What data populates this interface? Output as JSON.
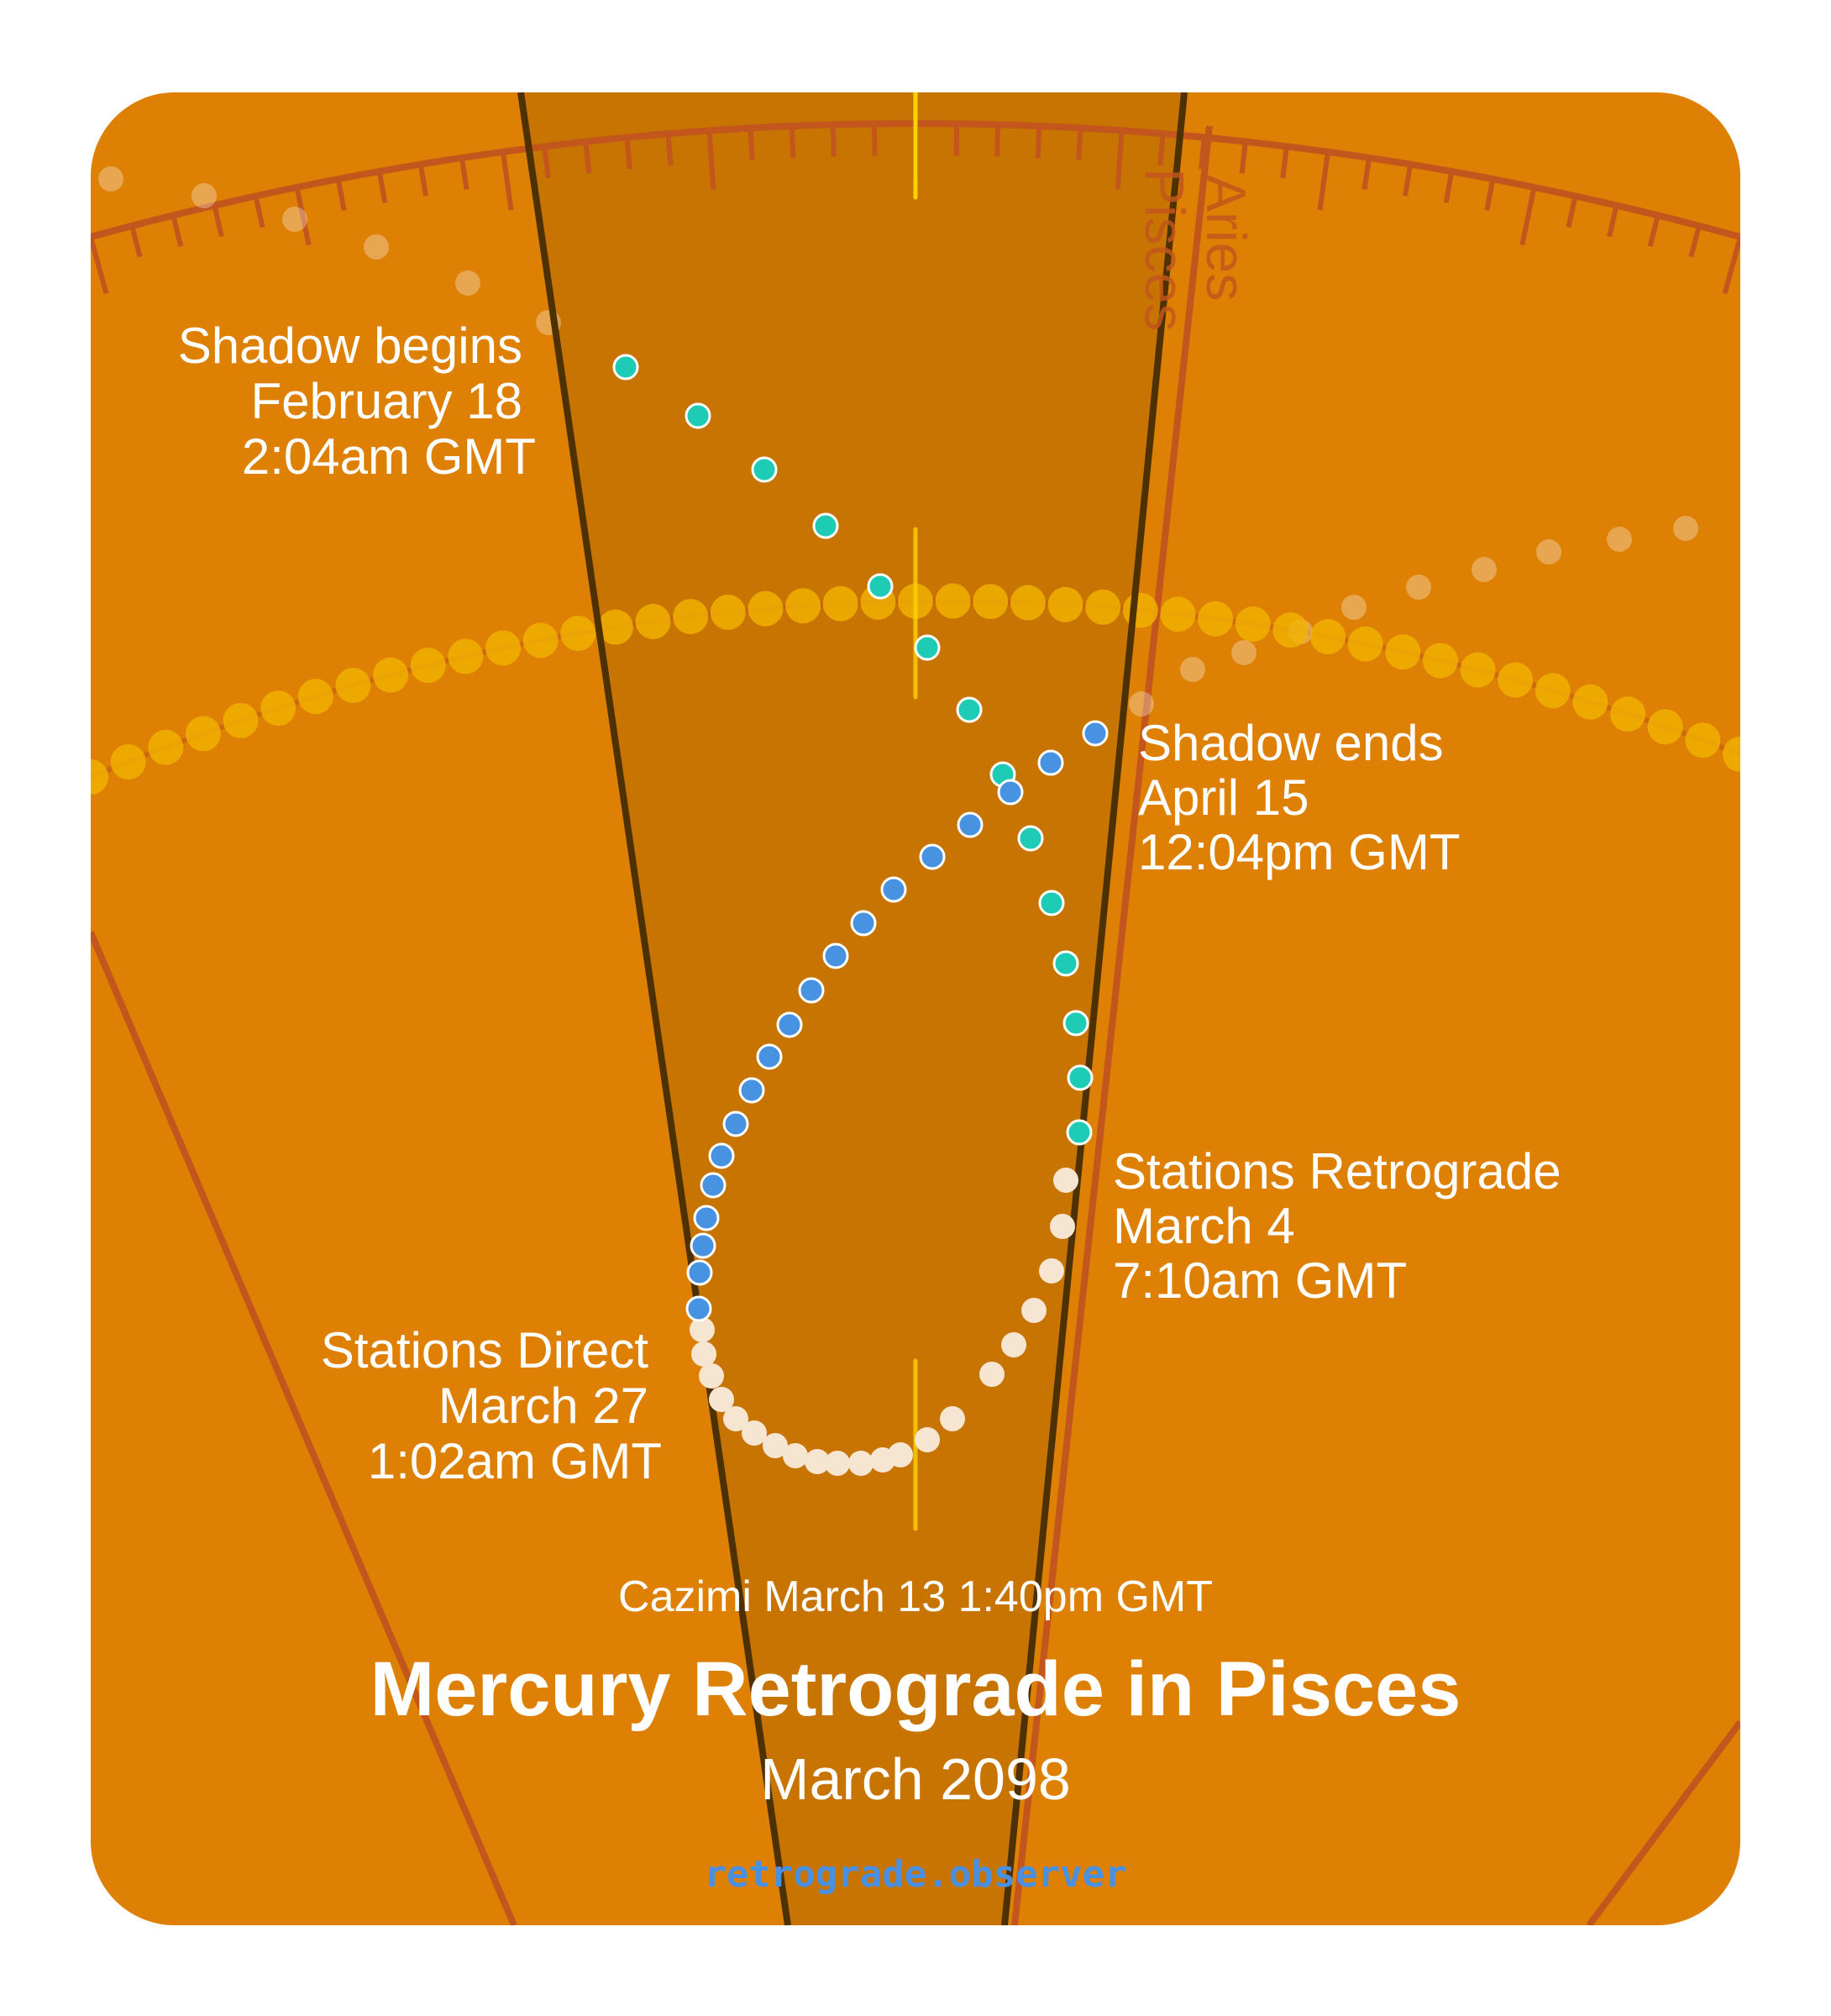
{
  "title": "Mercury Retrograde in Pisces",
  "subtitle": "March 2098",
  "cazimi": "Cazimi March 13 1:40pm GMT",
  "website": "retrograde.observer",
  "signs": {
    "left": "Pisces",
    "right": "Aries"
  },
  "events": {
    "shadow_begins": {
      "name": "Shadow begins",
      "date": "February 18",
      "time": "2:04am GMT"
    },
    "stations_retrograde": {
      "name": "Stations Retrograde",
      "date": "March 4",
      "time": "7:10am GMT"
    },
    "stations_direct": {
      "name": "Stations Direct",
      "date": "March 27",
      "time": "1:02am GMT"
    },
    "shadow_ends": {
      "name": "Shadow ends",
      "date": "April 15",
      "time": "12:04pm GMT"
    }
  },
  "colors": {
    "background": "#dd8003",
    "shadow_band": "#c77402",
    "pre_shadow_dot": "#1ecbb5",
    "retrograde_dot": "#f6e5d1",
    "post_shadow_dot": "#4793e2",
    "ecliptic_dot": "#f2b200",
    "zodiac_line": "#c2561c"
  }
}
